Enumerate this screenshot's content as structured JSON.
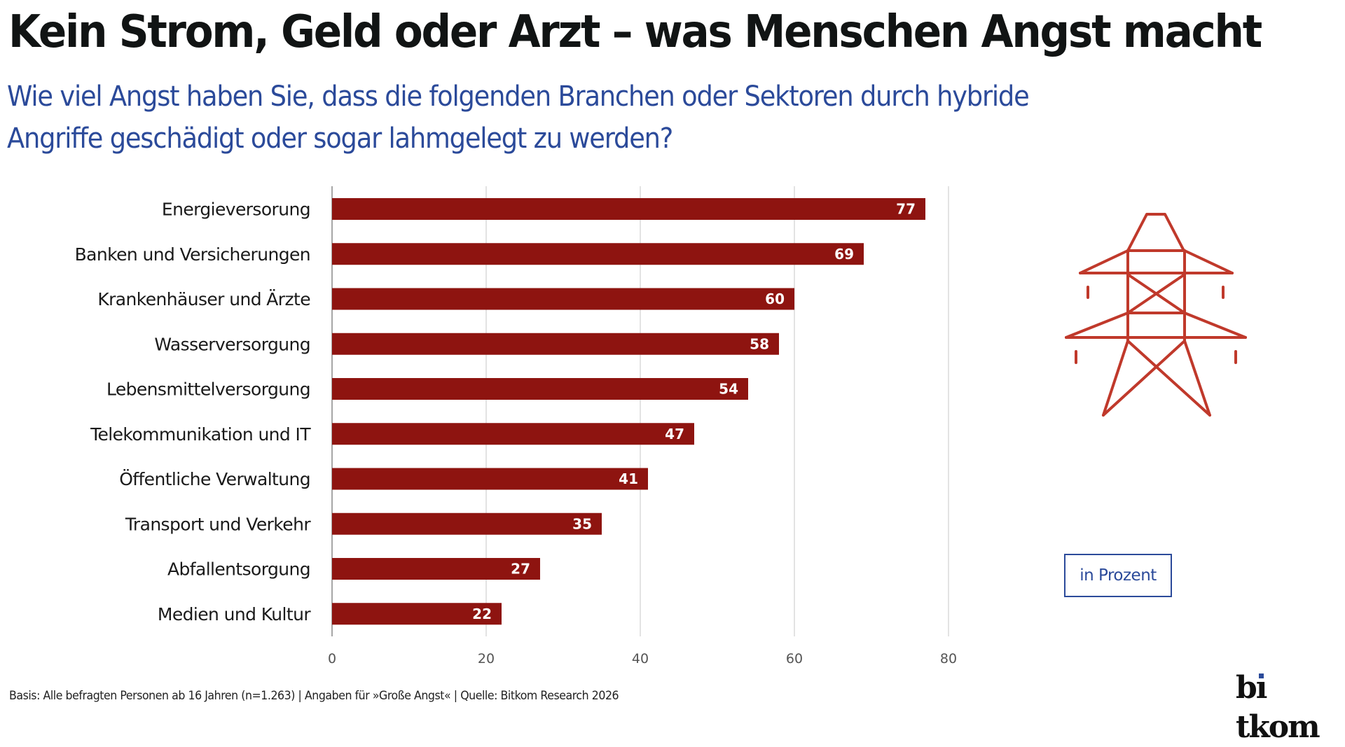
{
  "header": {
    "title": "Kein Strom, Geld oder Arzt – was Menschen Angst macht",
    "subtitle_line1": "Wie viel Angst haben Sie, dass die folgenden Branchen oder Sektoren durch hybride",
    "subtitle_line2": "Angriffe geschädigt oder sogar lahmgelegt zu werden?"
  },
  "colors": {
    "bar": "#8e1410",
    "accent_blue": "#2b4a9a",
    "icon_red": "#c0392b",
    "gridline": "#d0d0d0",
    "axis": "#888888"
  },
  "chart_data": {
    "type": "bar",
    "orientation": "horizontal",
    "title": "Kein Strom, Geld oder Arzt – was Menschen Angst macht",
    "subtitle": "Wie viel Angst haben Sie, dass die folgenden Branchen oder Sektoren durch hybride Angriffe geschädigt oder sogar lahmgelegt zu werden?",
    "categories": [
      "Energieversorung",
      "Banken und Versicherungen",
      "Krankenhäuser und Ärzte",
      "Wasserversorgung",
      "Lebensmittelversorgung",
      "Telekommunikation und IT",
      "Öffentliche Verwaltung",
      "Transport und Verkehr",
      "Abfallentsorgung",
      "Medien und Kultur"
    ],
    "values": [
      77,
      69,
      60,
      58,
      54,
      47,
      41,
      35,
      27,
      22
    ],
    "xlabel": "",
    "ylabel": "",
    "unit": "in Prozent",
    "xlim": [
      0,
      80
    ],
    "xticks": [
      0,
      20,
      40,
      60,
      80
    ],
    "grid": true,
    "data_labels": "inside-end"
  },
  "unit_label": "in Prozent",
  "footer": {
    "note": "Basis: Alle befragten Personen ab 16 Jahren (n=1.263) | Angaben für »Große Angst« | Quelle: Bitkom Research 2026"
  },
  "logo": {
    "text_before_i": "b",
    "text_i": "ı",
    "text_after_i": "tkom"
  },
  "icon": {
    "name": "power-pylon-icon"
  }
}
